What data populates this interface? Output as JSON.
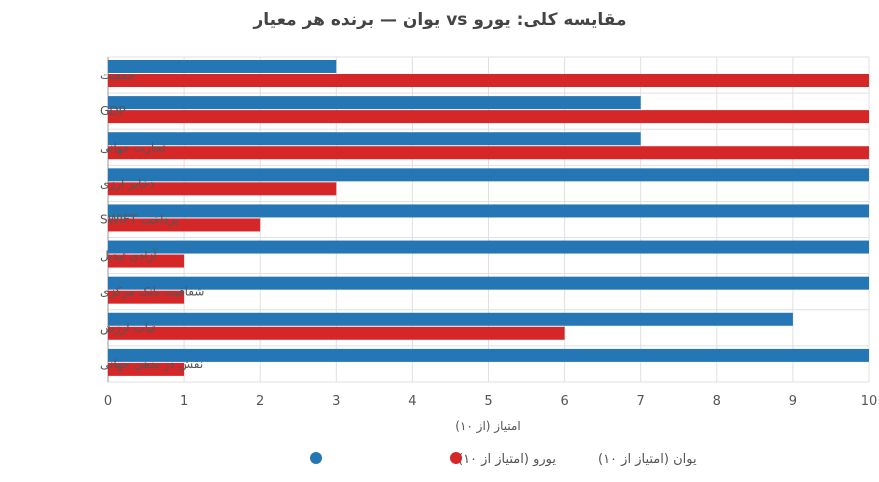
{
  "chart_data": {
    "type": "bar",
    "orientation": "horizontal",
    "title": "مقایسه کلی: یورو vs یوان — برنده هر معیار",
    "xlabel": "امتیاز (از ۱۰)",
    "ylabel": "",
    "xlim": [
      0,
      10
    ],
    "xticks": [
      "0",
      "1",
      "2",
      "3",
      "4",
      "5",
      "6",
      "7",
      "8",
      "9",
      "10"
    ],
    "grid": true,
    "legend_position": "bottom",
    "categories": [
      "جمعیت",
      "GDP",
      "تجارت جهانی",
      "ذخایر ارزی",
      "پرداخت SWIFT",
      "آزادی تبدیل",
      "شفافیت بانک مرکزی",
      "ثبات ارزش",
      "نقش در بدهی جهانی"
    ],
    "series": [
      {
        "name": "یورو (امتیاز از ۱۰)",
        "color": "#2576b5",
        "values": [
          3,
          7,
          7,
          10,
          10,
          10,
          10,
          9,
          10
        ]
      },
      {
        "name": "یوان (امتیاز از ۱۰)",
        "color": "#d62728",
        "values": [
          10,
          10,
          10,
          3,
          2,
          1,
          1,
          6,
          1
        ]
      }
    ]
  }
}
